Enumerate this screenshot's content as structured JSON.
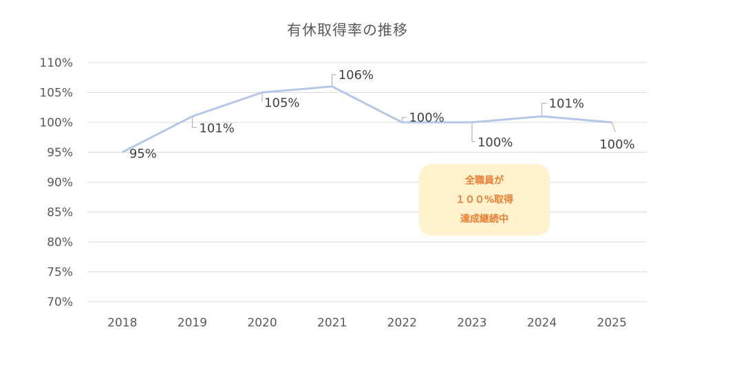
{
  "chart_data": {
    "type": "line",
    "title": "有休取得率の推移",
    "xlabel": "",
    "ylabel": "",
    "categories": [
      "2018",
      "2019",
      "2020",
      "2021",
      "2022",
      "2023",
      "2024",
      "2025"
    ],
    "series": [
      {
        "name": "有休取得率",
        "values": [
          95,
          101,
          105,
          106,
          100,
          100,
          101,
          100
        ],
        "color": "#b4c7e7"
      }
    ],
    "data_labels": [
      "95%",
      "101%",
      "105%",
      "106%",
      "100%",
      "100%",
      "101%",
      "100%"
    ],
    "ylim": [
      70,
      110
    ],
    "y_ticks": [
      "110%",
      "105%",
      "100%",
      "95%",
      "90%",
      "85%",
      "80%",
      "75%",
      "70%"
    ],
    "grid": true,
    "legend": "none",
    "annotation": {
      "lines": [
        "全職員が",
        "１００%取得",
        "達成継続中"
      ],
      "background": "#fff2cc",
      "text_color": "#ed7d31"
    }
  }
}
